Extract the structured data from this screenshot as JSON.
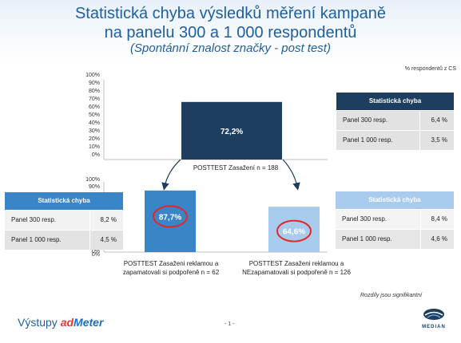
{
  "header": {
    "title_line1": "Statistická chyba výsledků měření kampaně",
    "title_line2": "na panelu 300 a 1 000 respondentů",
    "subtitle": "(Spontánní znalost značky  - post test)"
  },
  "notes": {
    "unit": "% respondentů z CS",
    "significance": "Rozdíly jsou signifikantní"
  },
  "chart_data": [
    {
      "type": "bar",
      "categories": [
        "POSTTEST Zasažení n = 188"
      ],
      "values": [
        72.2
      ],
      "value_labels": [
        "72,2%"
      ],
      "ylim": [
        0,
        100
      ],
      "ticks": [
        "100%",
        "90%",
        "80%",
        "70%",
        "60%",
        "50%",
        "40%",
        "30%",
        "20%",
        "10%",
        "0%"
      ],
      "color": "#1d3e5e"
    },
    {
      "type": "bar",
      "categories": [
        "POSTTEST Zasaženi reklamou a zapamatovali si podpořeně n = 62",
        "POSTTEST Zasaženi reklamou a NEzapamatovali si podpořeně n = 126"
      ],
      "values": [
        87.7,
        64.6
      ],
      "value_labels": [
        "87,7%",
        "64,6%"
      ],
      "ylim": [
        0,
        100
      ],
      "ticks": [
        "100%",
        "90%",
        "0%",
        "0%"
      ],
      "colors": [
        "#3a85c8",
        "#a9cbee"
      ]
    }
  ],
  "error_tables": {
    "top": {
      "header": "Statistická chyba",
      "rows": [
        {
          "label": "Panel 300 resp.",
          "value": "6,4 %"
        },
        {
          "label": "Panel 1 000 resp.",
          "value": "3,5 %"
        }
      ]
    },
    "left": {
      "header": "Statistická chyba",
      "rows": [
        {
          "label": "Panel 300 resp.",
          "value": "8,2 %"
        },
        {
          "label": "Panel 1 000 resp.",
          "value": "4,5 %"
        }
      ]
    },
    "right": {
      "header": "Statistická chyba",
      "rows": [
        {
          "label": "Panel 300 resp.",
          "value": "8,4 %"
        },
        {
          "label": "Panel 1 000 resp.",
          "value": "4,6 %"
        }
      ]
    }
  },
  "footer": {
    "label": "Výstupy",
    "brand_prefix": "ad",
    "brand_suffix": "Meter",
    "page": "- 1 -",
    "logo_text": "MEDIAN"
  }
}
